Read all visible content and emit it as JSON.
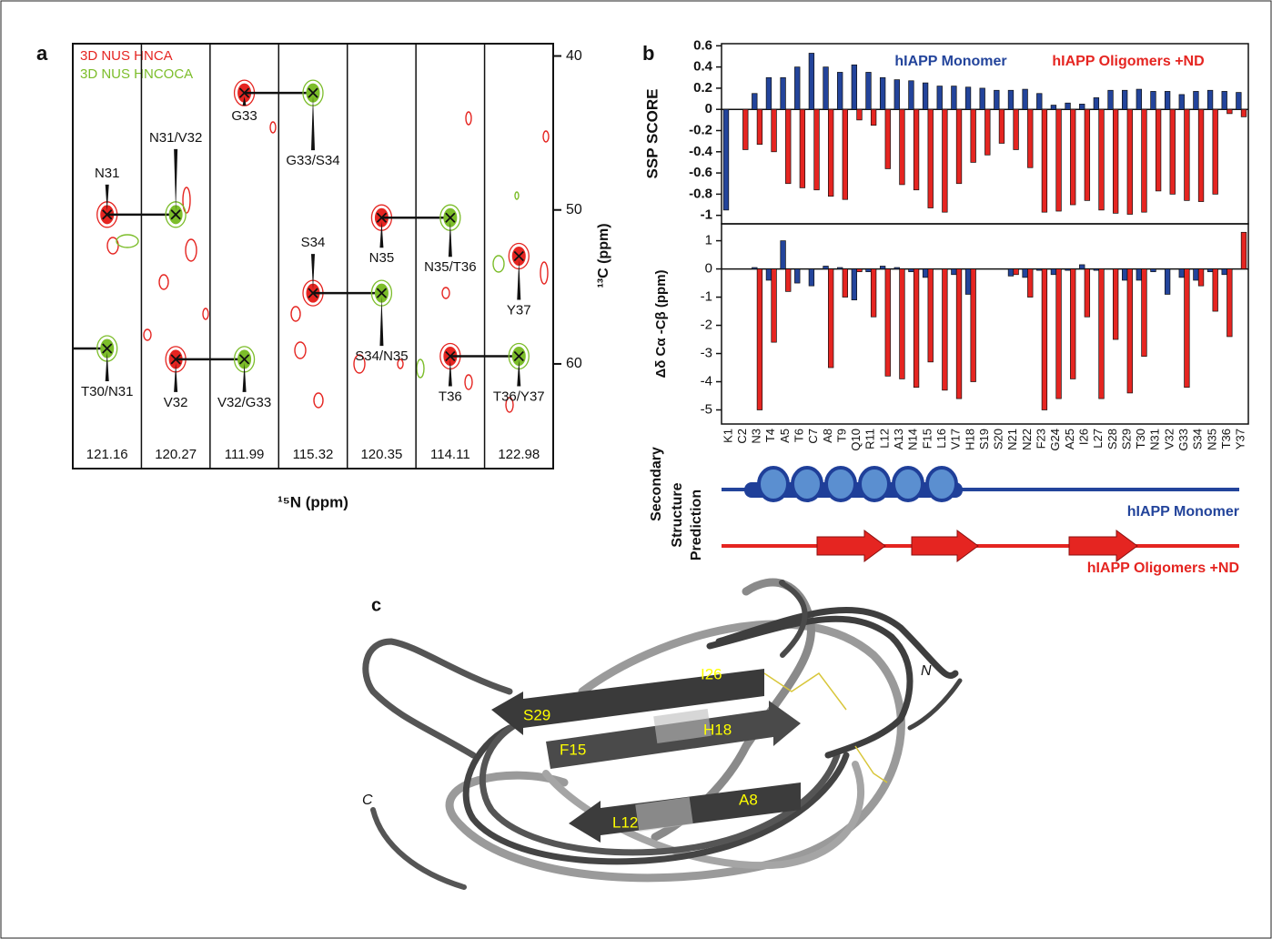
{
  "chart_data": [
    {
      "type": "nmr_strips",
      "label": "a",
      "spectra": [
        {
          "name": "3D NUS HNCA",
          "color": "#e52521"
        },
        {
          "name": "3D NUS HNCOCA",
          "color": "#7cbd2a"
        }
      ],
      "strips": [
        "121.16",
        "120.27",
        "111.99",
        "115.32",
        "120.35",
        "114.11",
        "122.98"
      ],
      "x_label": "¹⁵N (ppm)",
      "y_label": "¹³C (ppm)",
      "ylim": [
        39.2,
        66.8
      ],
      "y_reversed": true,
      "yticks": [
        40,
        50,
        60
      ],
      "peaks": [
        {
          "label": "T30/N31",
          "strip": "121.16",
          "c13": 59.0
        },
        {
          "label": "N31",
          "strip": "121.16",
          "c13": 50.3
        },
        {
          "label": "N31/V32",
          "strip": "120.27",
          "c13": 50.3
        },
        {
          "label": "V32",
          "strip": "120.27",
          "c13": 59.7
        },
        {
          "label": "V32/G33",
          "strip": "111.99",
          "c13": 59.7
        },
        {
          "label": "G33",
          "strip": "111.99",
          "c13": 42.4
        },
        {
          "label": "G33/S34",
          "strip": "115.32",
          "c13": 42.4
        },
        {
          "label": "S34",
          "strip": "115.32",
          "c13": 55.4
        },
        {
          "label": "S34/N35",
          "strip": "120.35",
          "c13": 55.4
        },
        {
          "label": "N35",
          "strip": "120.35",
          "c13": 50.5
        },
        {
          "label": "N35/T36",
          "strip": "114.11",
          "c13": 50.5
        },
        {
          "label": "T36",
          "strip": "114.11",
          "c13": 59.5
        },
        {
          "label": "T36/Y37",
          "strip": "122.98",
          "c13": 59.5
        },
        {
          "label": "Y37",
          "strip": "122.98",
          "c13": 53.0
        }
      ]
    },
    {
      "type": "bar",
      "label": "b",
      "y_label": "SSP SCORE",
      "ylim": [
        -1.08,
        0.62
      ],
      "yticks": [
        0.6,
        0.4,
        0.2,
        0,
        -0.2,
        -0.4,
        -0.6,
        -0.8,
        -1
      ],
      "series": [
        {
          "name": "hIAPP Monomer",
          "color": "#23449b",
          "values": [
            -0.95,
            0,
            0.15,
            0.3,
            0.3,
            0.4,
            0.53,
            0.4,
            0.35,
            0.42,
            0.35,
            0.3,
            0.28,
            0.27,
            0.25,
            0.22,
            0.22,
            0.21,
            0.2,
            0.18,
            0.18,
            0.19,
            0.15,
            0.04,
            0.06,
            0.05,
            0.11,
            0.18,
            0.18,
            0.19,
            0.17,
            0.17,
            0.14,
            0.17,
            0.18,
            0.17,
            0.16
          ]
        },
        {
          "name": "hIAPP Oligomers +ND",
          "color": "#e52521",
          "values": [
            0,
            -0.38,
            -0.33,
            -0.4,
            -0.7,
            -0.74,
            -0.76,
            -0.82,
            -0.85,
            -0.1,
            -0.15,
            -0.56,
            -0.71,
            -0.76,
            -0.93,
            -0.97,
            -0.7,
            -0.5,
            -0.43,
            -0.32,
            -0.38,
            -0.55,
            -0.97,
            -0.96,
            -0.9,
            -0.86,
            -0.95,
            -0.98,
            -0.99,
            -0.97,
            -0.77,
            -0.8,
            -0.86,
            -0.87,
            -0.8,
            -0.04,
            -0.07
          ]
        }
      ]
    },
    {
      "type": "bar",
      "y_label": "Δδ Cα -Cβ (ppm)",
      "ylim": [
        -5.5,
        1.6
      ],
      "yticks": [
        1,
        0,
        -1,
        -2,
        -3,
        -4,
        -5
      ],
      "categories": [
        "K1",
        "C2",
        "N3",
        "T4",
        "A5",
        "T6",
        "C7",
        "A8",
        "T9",
        "Q10",
        "R11",
        "L12",
        "A13",
        "N14",
        "F15",
        "L16",
        "V17",
        "H18",
        "S19",
        "S20",
        "N21",
        "N22",
        "F23",
        "G24",
        "A25",
        "I26",
        "L27",
        "S28",
        "S29",
        "T30",
        "N31",
        "V32",
        "G33",
        "S34",
        "N35",
        "T36",
        "Y37"
      ],
      "series": [
        {
          "color": "#23449b",
          "values": [
            0,
            0,
            0.05,
            -0.4,
            1.0,
            -0.5,
            -0.6,
            0.1,
            0.05,
            -1.1,
            -0.1,
            0.1,
            0.05,
            -0.1,
            -0.3,
            0,
            -0.2,
            -0.9,
            0,
            0,
            -0.25,
            -0.3,
            -0.05,
            -0.2,
            -0.05,
            0.15,
            -0.05,
            0,
            -0.4,
            -0.4,
            -0.1,
            -0.9,
            -0.3,
            -0.4,
            -0.1,
            -0.2,
            0
          ]
        },
        {
          "color": "#e52521",
          "values": [
            0,
            0,
            -5.0,
            -2.6,
            -0.8,
            0,
            0,
            -3.5,
            -1.0,
            -0.1,
            -1.7,
            -3.8,
            -3.9,
            -4.2,
            -3.3,
            -4.3,
            -4.6,
            -4.0,
            0,
            0,
            -0.2,
            -1.0,
            -5.0,
            -4.6,
            -3.9,
            -1.7,
            -4.6,
            -2.5,
            -4.4,
            -3.1,
            0,
            0,
            -4.2,
            -0.6,
            -1.5,
            -2.4,
            1.3
          ]
        }
      ]
    }
  ],
  "secondary_structure": {
    "title_lines": [
      "Secondary",
      "Structure",
      "Prediction"
    ]
  },
  "structure": {
    "label": "c",
    "residue_labels": [
      "S29",
      "I26",
      "F15",
      "H18",
      "L12",
      "A8"
    ],
    "termini": [
      "N",
      "C"
    ]
  }
}
